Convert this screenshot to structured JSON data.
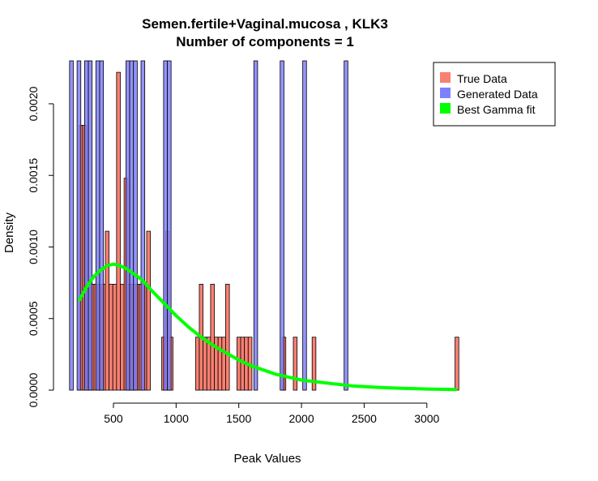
{
  "chart_data": {
    "type": "histogram",
    "title": "Semen.fertile+Vaginal.mucosa , KLK3",
    "subtitle": "Number of components =  1",
    "xlabel": "Peak Values",
    "ylabel": "Density",
    "xlim": [
      80,
      3260
    ],
    "ylim": [
      0,
      0.0023
    ],
    "x_ticks": [
      500,
      1000,
      1500,
      2000,
      2500,
      3000
    ],
    "y_ticks": [
      0.0,
      0.0005,
      0.001,
      0.0015,
      0.002
    ],
    "y_tick_labels": [
      "0.0000",
      "0.0005",
      "0.0010",
      "0.0015",
      "0.0020"
    ],
    "bin_width": 30,
    "legend": {
      "position": "top-right",
      "entries": [
        {
          "label": "True Data",
          "color": "#fa8072"
        },
        {
          "label": "Generated Data",
          "color": "#8080ff"
        },
        {
          "label": "Best Gamma fit",
          "color": "#00ff00"
        }
      ]
    },
    "true_data": {
      "color": "#fa8072",
      "bins": [
        {
          "x": 225,
          "density": 0.00185
        },
        {
          "x": 255,
          "density": 0.00185
        },
        {
          "x": 285,
          "density": 0.00074
        },
        {
          "x": 315,
          "density": 0.00074
        },
        {
          "x": 345,
          "density": 0.00074
        },
        {
          "x": 375,
          "density": 0.00074
        },
        {
          "x": 405,
          "density": 0.00074
        },
        {
          "x": 435,
          "density": 0.00111
        },
        {
          "x": 465,
          "density": 0.00074
        },
        {
          "x": 495,
          "density": 0.00074
        },
        {
          "x": 525,
          "density": 0.00222
        },
        {
          "x": 555,
          "density": 0.00074
        },
        {
          "x": 585,
          "density": 0.00148
        },
        {
          "x": 615,
          "density": 0.00074
        },
        {
          "x": 645,
          "density": 0.00074
        },
        {
          "x": 675,
          "density": 0.00074
        },
        {
          "x": 705,
          "density": 0.00074
        },
        {
          "x": 735,
          "density": 0.00074
        },
        {
          "x": 765,
          "density": 0.00111
        },
        {
          "x": 885,
          "density": 0.00037
        },
        {
          "x": 915,
          "density": 0.00111
        },
        {
          "x": 945,
          "density": 0.00037
        },
        {
          "x": 1155,
          "density": 0.00037
        },
        {
          "x": 1185,
          "density": 0.00074
        },
        {
          "x": 1215,
          "density": 0.00037
        },
        {
          "x": 1245,
          "density": 0.00037
        },
        {
          "x": 1275,
          "density": 0.00074
        },
        {
          "x": 1305,
          "density": 0.00037
        },
        {
          "x": 1335,
          "density": 0.00037
        },
        {
          "x": 1365,
          "density": 0.00037
        },
        {
          "x": 1395,
          "density": 0.00074
        },
        {
          "x": 1485,
          "density": 0.00037
        },
        {
          "x": 1515,
          "density": 0.00037
        },
        {
          "x": 1545,
          "density": 0.00037
        },
        {
          "x": 1575,
          "density": 0.00037
        },
        {
          "x": 1845,
          "density": 0.00037
        },
        {
          "x": 1935,
          "density": 0.00037
        },
        {
          "x": 2085,
          "density": 0.00037
        },
        {
          "x": 3225,
          "density": 0.00037
        }
      ]
    },
    "generated_data": {
      "color": "#8080ff",
      "note_density_exceeds_ylim": true,
      "bin_starts": [
        150,
        210,
        270,
        300,
        360,
        390,
        600,
        630,
        660,
        720,
        900,
        930,
        1620,
        1830,
        2010,
        2340
      ]
    },
    "gamma_fit": {
      "color": "#00ff00",
      "x": [
        230,
        260,
        300,
        350,
        400,
        450,
        500,
        550,
        600,
        650,
        700,
        750,
        800,
        900,
        1000,
        1100,
        1200,
        1300,
        1400,
        1500,
        1600,
        1700,
        1800,
        1900,
        2000,
        2200,
        2400,
        2600,
        2800,
        3000,
        3230
      ],
      "y": [
        0.00063,
        0.00068,
        0.00074,
        0.0008,
        0.00084,
        0.00087,
        0.00088,
        0.00087,
        0.00085,
        0.00082,
        0.00079,
        0.00075,
        0.0007,
        0.00061,
        0.00052,
        0.00044,
        0.00037,
        0.00031,
        0.00026,
        0.00021,
        0.00017,
        0.00014,
        0.00011,
        9e-05,
        7e-05,
        5e-05,
        3e-05,
        2e-05,
        1.3e-05,
        8e-06,
        4e-06
      ]
    }
  }
}
